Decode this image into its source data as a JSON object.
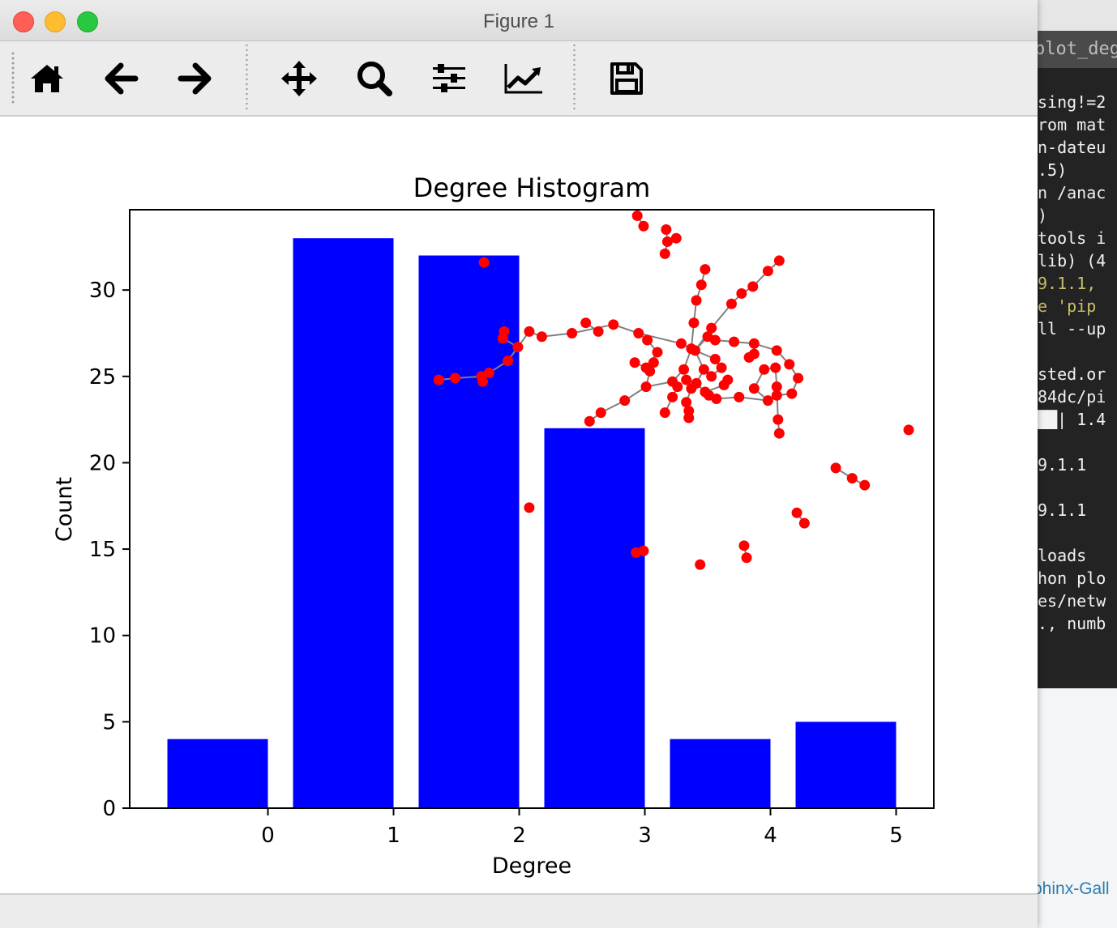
{
  "window": {
    "title": "Figure 1"
  },
  "toolbar": {
    "buttons": [
      {
        "id": "home",
        "icon": "home-icon",
        "tooltip": "Reset original view"
      },
      {
        "id": "back",
        "icon": "arrow-left-icon",
        "tooltip": "Back to previous view"
      },
      {
        "id": "forward",
        "icon": "arrow-right-icon",
        "tooltip": "Forward to next view"
      },
      {
        "id": "pan",
        "icon": "move-icon",
        "tooltip": "Pan axes"
      },
      {
        "id": "zoom",
        "icon": "zoom-icon",
        "tooltip": "Zoom to rectangle"
      },
      {
        "id": "subplots",
        "icon": "sliders-icon",
        "tooltip": "Configure subplots"
      },
      {
        "id": "axes",
        "icon": "chart-line-icon",
        "tooltip": "Edit axis, curve and image parameters"
      },
      {
        "id": "save",
        "icon": "floppy-disk-icon",
        "tooltip": "Save the figure"
      }
    ]
  },
  "background": {
    "terminal_tab": "plot_degr",
    "terminal_lines": [
      {
        "text": "sing!=2",
        "color": "#f2f2f2"
      },
      {
        "text": "rom mat",
        "color": "#f2f2f2"
      },
      {
        "text": "n-dateu",
        "color": "#f2f2f2"
      },
      {
        "text": ".5)",
        "color": "#f2f2f2"
      },
      {
        "text": "n /anac",
        "color": "#f2f2f2"
      },
      {
        "text": ")",
        "color": "#f2f2f2"
      },
      {
        "text": "tools i",
        "color": "#f2f2f2"
      },
      {
        "text": "lib) (4",
        "color": "#f2f2f2"
      },
      {
        "text": "9.1.1, ",
        "color": "#c8c06a"
      },
      {
        "text": "e 'pip",
        "color": "#c8c06a"
      },
      {
        "text": "ll --up",
        "color": "#f2f2f2"
      },
      {
        "text": "",
        "color": "#f2f2f2"
      },
      {
        "text": "sted.or",
        "color": "#f2f2f2"
      },
      {
        "text": "84dc/pi",
        "color": "#f2f2f2"
      },
      {
        "text": "██| 1.4",
        "color": "#f2f2f2"
      },
      {
        "text": "",
        "color": "#f2f2f2"
      },
      {
        "text": "9.1.1",
        "color": "#f2f2f2"
      },
      {
        "text": "",
        "color": "#f2f2f2"
      },
      {
        "text": "9.1.1",
        "color": "#f2f2f2"
      },
      {
        "text": "",
        "color": "#f2f2f2"
      },
      {
        "text": "loads",
        "color": "#f2f2f2"
      },
      {
        "text": "hon plo",
        "color": "#f2f2f2"
      },
      {
        "text": "es/netw",
        "color": "#f2f2f2"
      },
      {
        "text": "., numb",
        "color": "#f2f2f2"
      }
    ],
    "docs_link_fragment": "phinx-Gall"
  },
  "chart_data": {
    "type": "bar",
    "title": "Degree Histogram",
    "xlabel": "Degree",
    "ylabel": "Count",
    "categories": [
      0,
      1,
      2,
      3,
      4,
      5
    ],
    "values": [
      4,
      33,
      32,
      22,
      4,
      5
    ],
    "bar_color": "#0000ff",
    "xticks": [
      "0",
      "1",
      "2",
      "3",
      "4",
      "5"
    ],
    "yticks": [
      "0",
      "5",
      "10",
      "15",
      "20",
      "25",
      "30"
    ],
    "xlim": [
      -1.1,
      5.3
    ],
    "ylim": [
      0,
      34.65
    ],
    "grid": false,
    "inset_graph": {
      "node_color": "#ff0000",
      "edge_color": "#808080",
      "nodes": [
        [
          2.94,
          34.3
        ],
        [
          2.99,
          33.7
        ],
        [
          3.17,
          33.5
        ],
        [
          3.18,
          32.8
        ],
        [
          3.25,
          33.0
        ],
        [
          3.16,
          32.1
        ],
        [
          1.72,
          31.6
        ],
        [
          4.07,
          31.7
        ],
        [
          3.98,
          31.1
        ],
        [
          3.48,
          31.2
        ],
        [
          3.45,
          30.3
        ],
        [
          3.86,
          30.2
        ],
        [
          3.77,
          29.8
        ],
        [
          3.41,
          29.4
        ],
        [
          3.69,
          29.2
        ],
        [
          3.39,
          28.1
        ],
        [
          3.53,
          27.8
        ],
        [
          2.53,
          28.1
        ],
        [
          2.75,
          28.0
        ],
        [
          2.63,
          27.6
        ],
        [
          2.08,
          27.6
        ],
        [
          1.88,
          27.6
        ],
        [
          1.87,
          27.2
        ],
        [
          2.18,
          27.3
        ],
        [
          2.42,
          27.5
        ],
        [
          2.95,
          27.5
        ],
        [
          3.02,
          27.1
        ],
        [
          3.5,
          27.3
        ],
        [
          3.56,
          27.1
        ],
        [
          3.71,
          27.0
        ],
        [
          3.87,
          26.9
        ],
        [
          3.29,
          26.9
        ],
        [
          3.37,
          26.6
        ],
        [
          3.4,
          26.5
        ],
        [
          3.1,
          26.4
        ],
        [
          1.99,
          26.7
        ],
        [
          4.05,
          26.5
        ],
        [
          3.87,
          26.3
        ],
        [
          3.83,
          26.1
        ],
        [
          1.91,
          25.9
        ],
        [
          2.92,
          25.8
        ],
        [
          3.07,
          25.8
        ],
        [
          3.56,
          26.0
        ],
        [
          4.15,
          25.7
        ],
        [
          3.61,
          25.5
        ],
        [
          3.47,
          25.4
        ],
        [
          3.31,
          25.4
        ],
        [
          3.01,
          25.5
        ],
        [
          3.04,
          25.3
        ],
        [
          3.95,
          25.4
        ],
        [
          4.04,
          25.5
        ],
        [
          1.76,
          25.2
        ],
        [
          1.7,
          25.0
        ],
        [
          1.49,
          24.9
        ],
        [
          1.36,
          24.8
        ],
        [
          1.71,
          24.7
        ],
        [
          3.22,
          24.7
        ],
        [
          3.33,
          24.8
        ],
        [
          3.53,
          25.0
        ],
        [
          3.66,
          24.8
        ],
        [
          4.22,
          24.9
        ],
        [
          3.41,
          24.6
        ],
        [
          3.63,
          24.5
        ],
        [
          3.26,
          24.4
        ],
        [
          4.05,
          24.4
        ],
        [
          3.01,
          24.4
        ],
        [
          3.37,
          24.3
        ],
        [
          3.87,
          24.3
        ],
        [
          3.48,
          24.1
        ],
        [
          3.51,
          23.9
        ],
        [
          3.57,
          23.7
        ],
        [
          3.22,
          23.8
        ],
        [
          3.75,
          23.8
        ],
        [
          4.05,
          23.9
        ],
        [
          4.17,
          24.0
        ],
        [
          3.98,
          23.6
        ],
        [
          3.33,
          23.5
        ],
        [
          2.84,
          23.6
        ],
        [
          3.35,
          23.0
        ],
        [
          3.16,
          22.9
        ],
        [
          2.65,
          22.9
        ],
        [
          3.35,
          22.6
        ],
        [
          4.06,
          22.5
        ],
        [
          2.56,
          22.4
        ],
        [
          4.07,
          21.7
        ],
        [
          5.1,
          21.9
        ],
        [
          4.52,
          19.7
        ],
        [
          4.65,
          19.1
        ],
        [
          4.75,
          18.7
        ],
        [
          2.08,
          17.4
        ],
        [
          4.21,
          17.1
        ],
        [
          4.27,
          16.5
        ],
        [
          3.79,
          15.2
        ],
        [
          3.81,
          14.5
        ],
        [
          2.93,
          14.8
        ],
        [
          2.99,
          14.9
        ],
        [
          3.44,
          14.1
        ]
      ],
      "edges": [
        [
          3.17,
          33.5,
          3.18,
          32.8
        ],
        [
          3.18,
          32.8,
          3.16,
          32.1
        ],
        [
          3.25,
          33.0,
          3.18,
          32.8
        ],
        [
          2.94,
          34.3,
          2.99,
          33.7
        ],
        [
          3.48,
          31.2,
          3.45,
          30.3
        ],
        [
          3.45,
          30.3,
          3.41,
          29.4
        ],
        [
          3.41,
          29.4,
          3.39,
          28.1
        ],
        [
          3.39,
          28.1,
          3.37,
          26.6
        ],
        [
          4.07,
          31.7,
          3.98,
          31.1
        ],
        [
          3.98,
          31.1,
          3.86,
          30.2
        ],
        [
          3.86,
          30.2,
          3.77,
          29.8
        ],
        [
          3.77,
          29.8,
          3.69,
          29.2
        ],
        [
          3.69,
          29.2,
          3.53,
          27.8
        ],
        [
          3.53,
          27.8,
          3.4,
          26.5
        ],
        [
          1.88,
          27.6,
          1.87,
          27.2
        ],
        [
          1.87,
          27.2,
          1.99,
          26.7
        ],
        [
          1.99,
          26.7,
          2.08,
          27.6
        ],
        [
          2.08,
          27.6,
          2.18,
          27.3
        ],
        [
          2.18,
          27.3,
          2.42,
          27.5
        ],
        [
          2.42,
          27.5,
          2.75,
          28.0
        ],
        [
          2.75,
          28.0,
          2.95,
          27.5
        ],
        [
          2.95,
          27.5,
          3.29,
          26.9
        ],
        [
          3.29,
          26.9,
          3.4,
          26.5
        ],
        [
          2.53,
          28.1,
          2.63,
          27.6
        ],
        [
          2.95,
          27.5,
          3.02,
          27.1
        ],
        [
          3.02,
          27.1,
          3.1,
          26.4
        ],
        [
          3.1,
          26.4,
          3.07,
          25.8
        ],
        [
          1.99,
          26.7,
          1.91,
          25.9
        ],
        [
          1.91,
          25.9,
          1.76,
          25.2
        ],
        [
          1.76,
          25.2,
          1.71,
          24.7
        ],
        [
          1.7,
          25.0,
          1.49,
          24.9
        ],
        [
          1.49,
          24.9,
          1.36,
          24.8
        ],
        [
          1.7,
          25.0,
          1.71,
          24.7
        ],
        [
          3.4,
          26.5,
          3.5,
          27.3
        ],
        [
          3.5,
          27.3,
          3.56,
          27.1
        ],
        [
          3.56,
          27.1,
          3.71,
          27.0
        ],
        [
          3.71,
          27.0,
          3.87,
          26.9
        ],
        [
          3.87,
          26.9,
          4.05,
          26.5
        ],
        [
          4.05,
          26.5,
          4.15,
          25.7
        ],
        [
          4.15,
          25.7,
          4.22,
          24.9
        ],
        [
          4.22,
          24.9,
          4.17,
          24.0
        ],
        [
          4.17,
          24.0,
          4.05,
          23.9
        ],
        [
          4.05,
          23.9,
          3.98,
          23.6
        ],
        [
          3.98,
          23.6,
          3.87,
          24.3
        ],
        [
          3.87,
          24.3,
          3.95,
          25.4
        ],
        [
          3.95,
          25.4,
          4.04,
          25.5
        ],
        [
          4.04,
          25.5,
          4.05,
          24.4
        ],
        [
          4.05,
          24.4,
          4.06,
          22.5
        ],
        [
          4.06,
          22.5,
          4.07,
          21.7
        ],
        [
          3.4,
          26.5,
          3.37,
          26.6
        ],
        [
          3.37,
          26.6,
          3.31,
          25.4
        ],
        [
          3.31,
          25.4,
          3.22,
          24.7
        ],
        [
          3.22,
          24.7,
          3.26,
          24.4
        ],
        [
          3.26,
          24.4,
          3.16,
          22.9
        ],
        [
          3.4,
          26.5,
          3.47,
          25.4
        ],
        [
          3.47,
          25.4,
          3.53,
          25.0
        ],
        [
          3.53,
          25.0,
          3.61,
          25.5
        ],
        [
          3.61,
          25.5,
          3.56,
          26.0
        ],
        [
          3.56,
          26.0,
          3.4,
          26.5
        ],
        [
          3.47,
          25.4,
          3.41,
          24.6
        ],
        [
          3.41,
          24.6,
          3.33,
          24.8
        ],
        [
          3.33,
          24.8,
          3.37,
          24.3
        ],
        [
          3.37,
          24.3,
          3.33,
          23.5
        ],
        [
          3.33,
          23.5,
          3.35,
          23.0
        ],
        [
          3.35,
          23.0,
          3.35,
          22.6
        ],
        [
          3.41,
          24.6,
          3.48,
          24.1
        ],
        [
          3.48,
          24.1,
          3.51,
          23.9
        ],
        [
          3.51,
          23.9,
          3.57,
          23.7
        ],
        [
          3.57,
          23.7,
          3.75,
          23.8
        ],
        [
          3.75,
          23.8,
          3.98,
          23.6
        ],
        [
          3.63,
          24.5,
          3.66,
          24.8
        ],
        [
          3.63,
          24.5,
          3.48,
          24.1
        ],
        [
          3.1,
          26.4,
          3.01,
          25.5
        ],
        [
          3.01,
          25.5,
          2.92,
          25.8
        ],
        [
          3.01,
          25.5,
          3.04,
          25.3
        ],
        [
          3.04,
          25.3,
          3.01,
          24.4
        ],
        [
          3.01,
          24.4,
          2.84,
          23.6
        ],
        [
          2.84,
          23.6,
          2.65,
          22.9
        ],
        [
          2.65,
          22.9,
          2.56,
          22.4
        ],
        [
          3.01,
          24.4,
          3.22,
          24.7
        ],
        [
          3.83,
          26.1,
          3.87,
          26.3
        ],
        [
          3.87,
          26.3,
          3.87,
          26.9
        ],
        [
          4.52,
          19.7,
          4.65,
          19.1
        ],
        [
          4.65,
          19.1,
          4.75,
          18.7
        ],
        [
          4.21,
          17.1,
          4.27,
          16.5
        ],
        [
          3.79,
          15.2,
          3.81,
          14.5
        ],
        [
          2.93,
          14.8,
          2.99,
          14.9
        ]
      ]
    }
  }
}
